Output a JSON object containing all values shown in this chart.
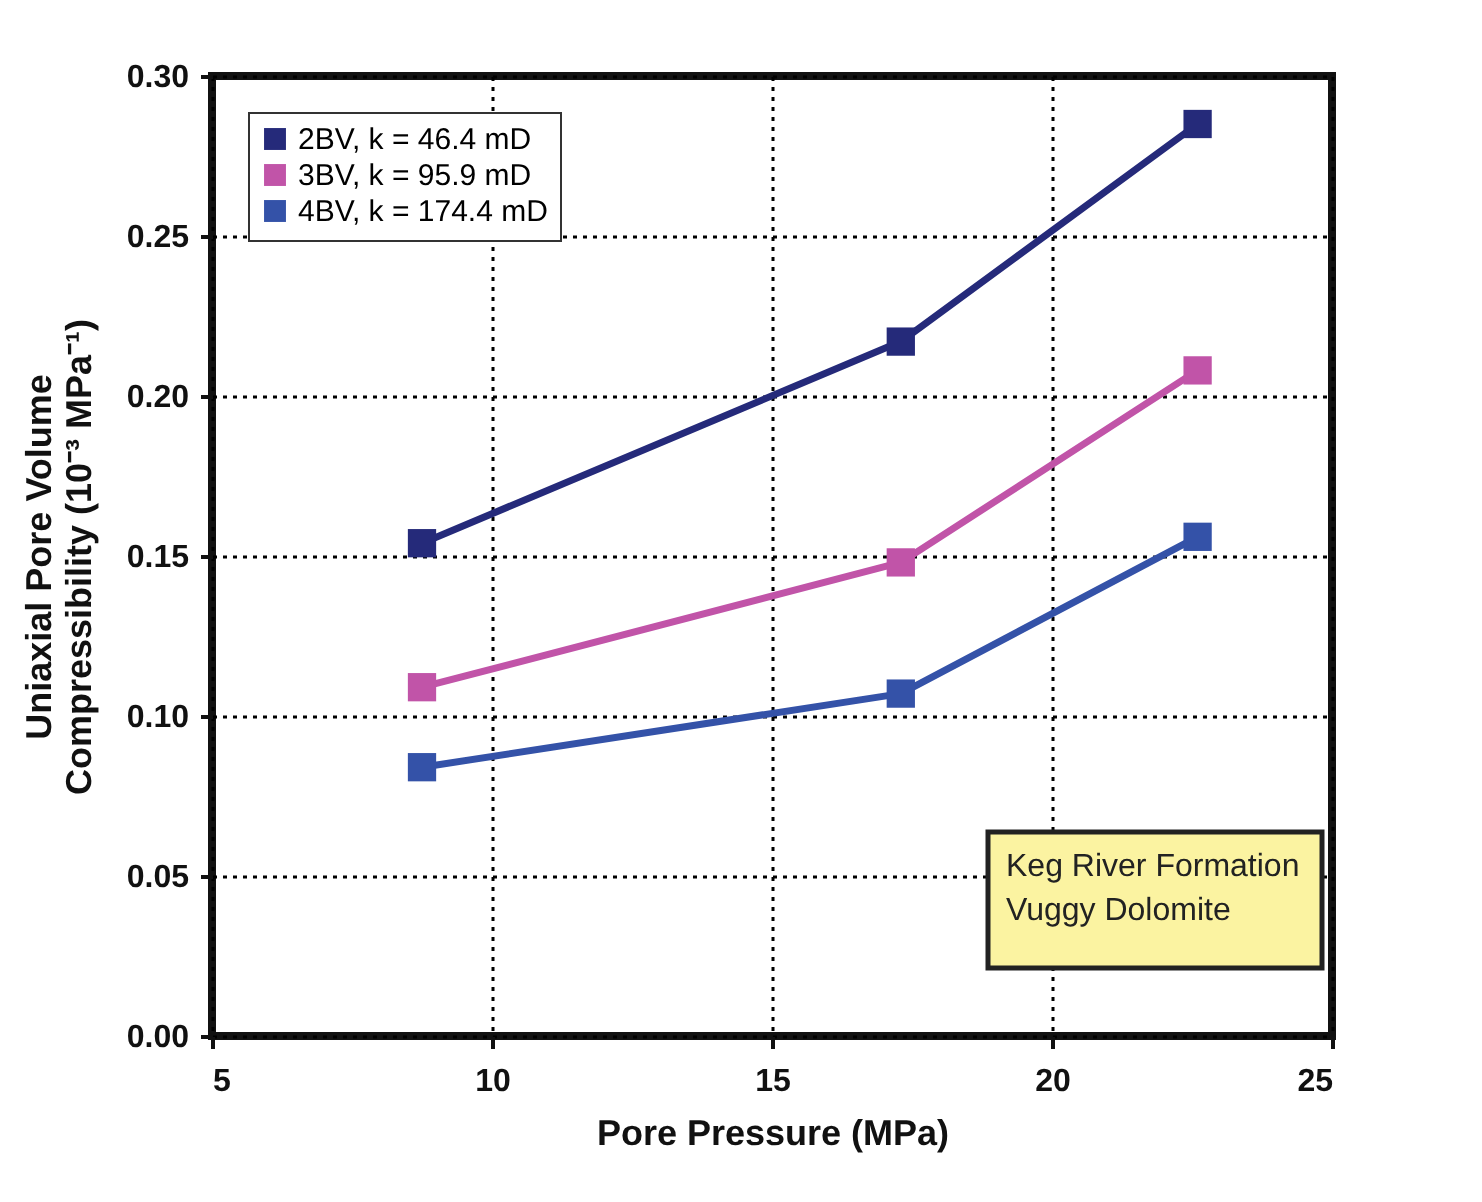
{
  "chart_data": {
    "type": "line",
    "xlabel": "Pore Pressure (MPa)",
    "ylabel": "Uniaxial Pore Volume\nCompressibility (10⁻³ MPa⁻¹)",
    "x": [
      8.75,
      17.3,
      22.6
    ],
    "series": [
      {
        "name": "2BV, k = 46.4 mD",
        "color": "#252a7a",
        "values": [
          0.154,
          0.217,
          0.285
        ]
      },
      {
        "name": "3BV, k = 95.9 mD",
        "color": "#c154a8",
        "values": [
          0.109,
          0.148,
          0.208
        ]
      },
      {
        "name": "4BV, k = 174.4 mD",
        "color": "#3452a8",
        "values": [
          0.084,
          0.107,
          0.156
        ]
      }
    ],
    "xlim": [
      5,
      25
    ],
    "xticks": [
      5,
      10,
      15,
      20,
      25
    ],
    "ylim": [
      0,
      0.3
    ],
    "yticks": [
      {
        "value": 0,
        "label": "0.00"
      },
      {
        "value": 0.05,
        "label": "0.05"
      },
      {
        "value": 0.1,
        "label": "0.10"
      },
      {
        "value": 0.15,
        "label": "0.15"
      },
      {
        "value": 0.2,
        "label": "0.20"
      },
      {
        "value": 0.25,
        "label": "0.25"
      },
      {
        "value": 0.3,
        "label": "0.30"
      }
    ],
    "grid": true,
    "legend": "top left",
    "marker": "square",
    "line_style": "solid",
    "annotations": [
      "Keg River Formation\nVuggy Dolomite"
    ]
  }
}
